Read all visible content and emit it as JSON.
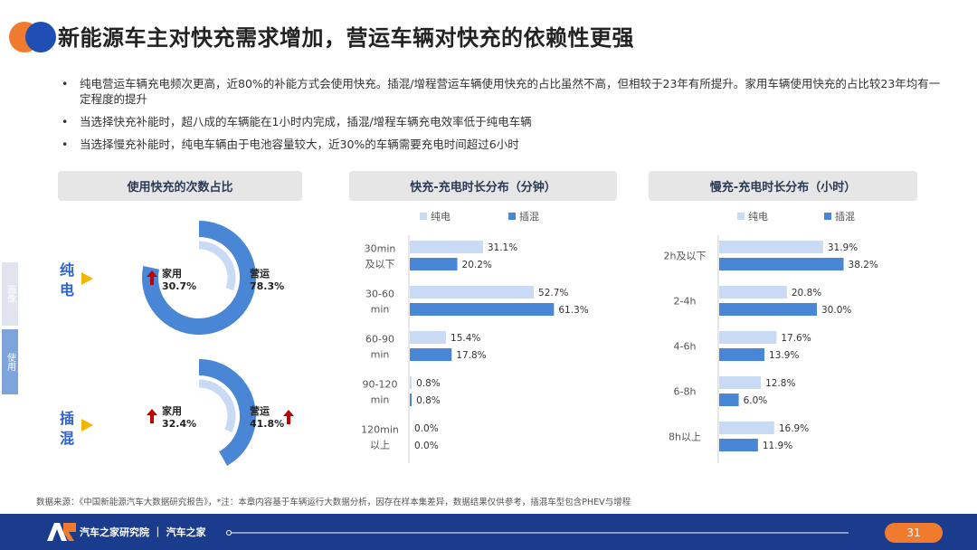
{
  "header": {
    "title": "新能源车主对快充需求增加，营运车辆对快充的依赖性更强"
  },
  "bullets": [
    "纯电营运车辆充电频次更高，近80%的补能方式会使用快充。插混/增程营运车辆使用快充的占比虽然不高，但相较于23年有所提升。家用车辆使用快充的占比较23年均有一定程度的提升",
    "当选择快充补能时，超八成的车辆能在1小时内完成，插混/增程车辆充电效率低于纯电车辆",
    "当选择慢充补能时，纯电车辆由于电池容量较大，近30%的车辆需要充电时间超过6小时"
  ],
  "side_tabs": [
    "画像",
    "使用"
  ],
  "panels": {
    "p1": "使用快充的次数占比",
    "p2": "快充-充电时长分布（分钟）",
    "p3": "慢充-充电时长分布（小时）"
  },
  "rows": {
    "bev": "纯电",
    "phev": "插混"
  },
  "donuts": {
    "bev": {
      "home_label": "家用",
      "home_value": "30.7%",
      "op_label": "营运",
      "op_value": "78.3%"
    },
    "phev": {
      "home_label": "家用",
      "home_value": "32.4%",
      "op_label": "营运",
      "op_value": "41.8%"
    }
  },
  "colors": {
    "bev": "#c9daf5",
    "phev": "#4a86d6",
    "accent": "#f07a2e",
    "navy": "#1b3c8c",
    "arrow": "#c00000",
    "triangle": "#f2b600"
  },
  "footer": {
    "note": "数据来源：《中国新能源汽车大数据研究报告》，*注：本章内容基于车辆运行大数据分析，因存在样本集差异，数据结果仅供参考，插混车型包含PHEV与增程",
    "brand": "汽车之家研究院 ｜ 汽车之家",
    "page": "31"
  },
  "chart_data": [
    {
      "type": "pie",
      "title": "使用快充的次数占比",
      "groups": [
        {
          "name": "纯电",
          "series": [
            {
              "name": "家用",
              "value": 30.7
            },
            {
              "name": "营运",
              "value": 78.3
            }
          ]
        },
        {
          "name": "插混",
          "series": [
            {
              "name": "家用",
              "value": 32.4
            },
            {
              "name": "营运",
              "value": 41.8
            }
          ]
        }
      ]
    },
    {
      "type": "bar",
      "title": "快充-充电时长分布（分钟）",
      "categories": [
        [
          "30min",
          "及以下"
        ],
        [
          "30-60",
          "min"
        ],
        [
          "60-90",
          "min"
        ],
        [
          "90-120",
          "min"
        ],
        [
          "120min",
          "以上"
        ]
      ],
      "series": [
        {
          "name": "纯电",
          "values": [
            31.1,
            52.7,
            15.4,
            0.8,
            0.0
          ]
        },
        {
          "name": "插混",
          "values": [
            20.2,
            61.3,
            17.8,
            0.8,
            0.0
          ]
        }
      ],
      "legend": "top",
      "xlim": [
        0,
        100
      ]
    },
    {
      "type": "bar",
      "title": "慢充-充电时长分布（小时）",
      "categories": [
        [
          "2h及以下"
        ],
        [
          "2-4h"
        ],
        [
          "4-6h"
        ],
        [
          "6-8h"
        ],
        [
          "8h以上"
        ]
      ],
      "series": [
        {
          "name": "纯电",
          "values": [
            31.9,
            20.8,
            17.6,
            12.8,
            16.9
          ]
        },
        {
          "name": "插混",
          "values": [
            38.2,
            30.0,
            13.9,
            6.0,
            11.9
          ]
        }
      ],
      "legend": "top",
      "xlim": [
        0,
        100
      ]
    }
  ]
}
